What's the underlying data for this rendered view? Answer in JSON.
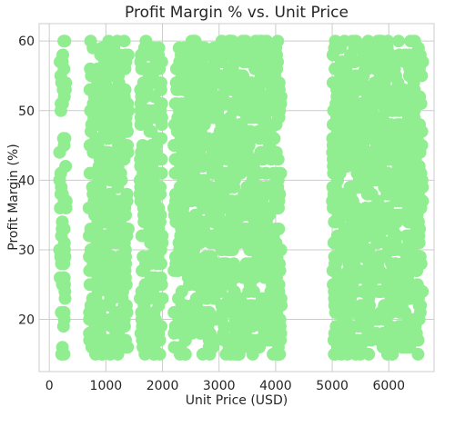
{
  "chart_data": {
    "type": "scatter",
    "title": "Profit Margin % vs. Unit Price",
    "xlabel": "Unit Price (USD)",
    "ylabel": "Profit Margin (%)",
    "xlim": [
      -180,
      6800
    ],
    "ylim": [
      12.5,
      62.5
    ],
    "xticks": [
      0,
      1000,
      2000,
      3000,
      4000,
      5000,
      6000
    ],
    "yticks": [
      20,
      30,
      40,
      50,
      60
    ],
    "grid": true,
    "legend": "none",
    "marker_color": "#90ee90",
    "price_bands": [
      {
        "x_min": 180,
        "x_max": 300,
        "y_min": 15,
        "y_max": 60
      },
      {
        "x_min": 700,
        "x_max": 1400,
        "y_min": 15,
        "y_max": 60
      },
      {
        "x_min": 1600,
        "x_max": 2000,
        "y_min": 15,
        "y_max": 60
      },
      {
        "x_min": 2200,
        "x_max": 4100,
        "y_min": 15,
        "y_max": 60
      },
      {
        "x_min": 5000,
        "x_max": 6600,
        "y_min": 15,
        "y_max": 60
      }
    ]
  }
}
